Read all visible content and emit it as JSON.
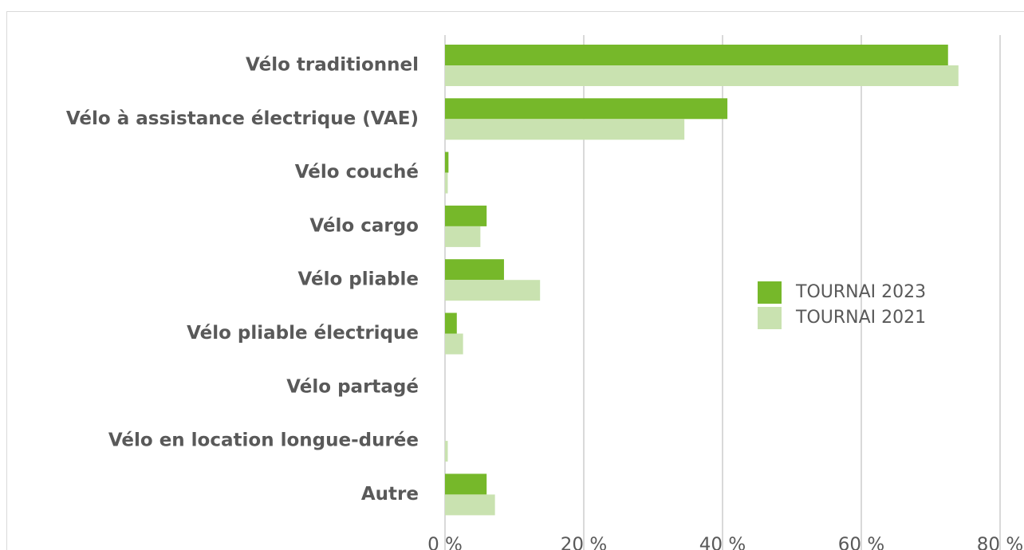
{
  "chart_data": {
    "type": "barh",
    "categories": [
      "Vélo traditionnel",
      "Vélo à assistance électrique (VAE)",
      "Vélo couché",
      "Vélo cargo",
      "Vélo pliable",
      "Vélo pliable électrique",
      "Vélo partagé",
      "Vélo en location longue-durée",
      "Autre"
    ],
    "series": [
      {
        "name": "TOURNAI 2023",
        "color": "#76b82a",
        "values": [
          72.5,
          40.7,
          0.5,
          6.0,
          8.5,
          1.7,
          0,
          0,
          6.0
        ]
      },
      {
        "name": "TOURNAI 2021",
        "color": "#c9e2b0",
        "values": [
          74.0,
          34.5,
          0.4,
          5.1,
          13.7,
          2.6,
          0,
          0.4,
          7.2
        ]
      }
    ],
    "xlim": [
      0,
      80
    ],
    "xticks": [
      {
        "value": 0,
        "label": "0 %"
      },
      {
        "value": 20,
        "label": "20 %"
      },
      {
        "value": 40,
        "label": "40 %"
      },
      {
        "value": 60,
        "label": "60 %"
      },
      {
        "value": 80,
        "label": "80 %"
      }
    ],
    "grid": true,
    "legend": "right"
  }
}
